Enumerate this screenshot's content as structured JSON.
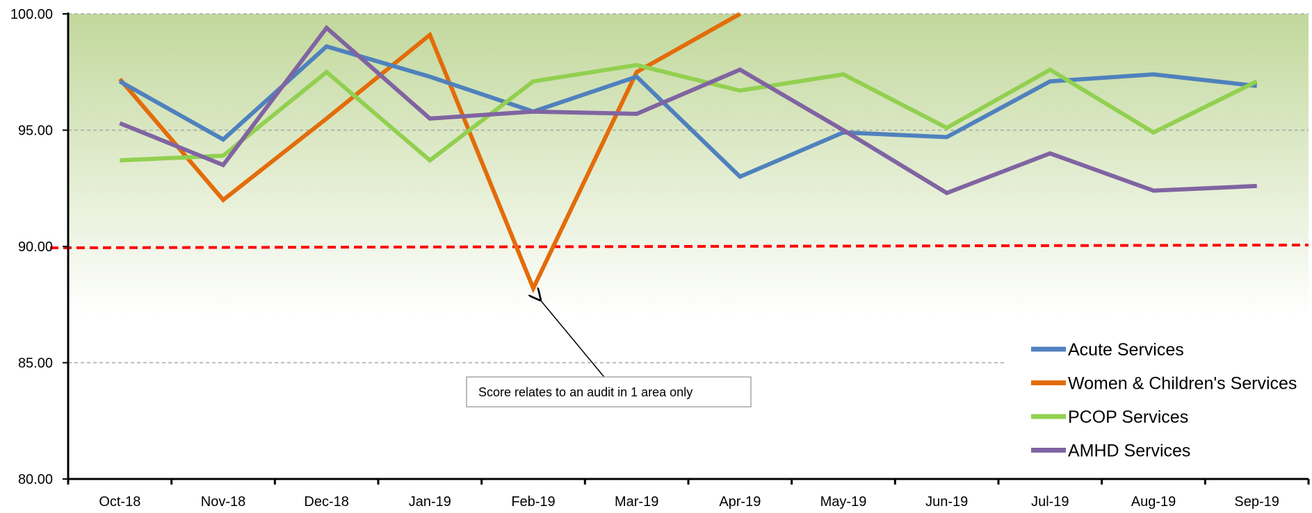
{
  "chart_data": {
    "type": "line",
    "categories": [
      "Oct-18",
      "Nov-18",
      "Dec-18",
      "Jan-19",
      "Feb-19",
      "Mar-19",
      "Apr-19",
      "May-19",
      "Jun-19",
      "Jul-19",
      "Aug-19",
      "Sep-19"
    ],
    "series": [
      {
        "name": "Acute Services",
        "color": "#4f81bd",
        "values": [
          97.1,
          94.6,
          98.6,
          97.3,
          95.8,
          97.3,
          93.0,
          94.9,
          94.7,
          97.1,
          97.4,
          96.9
        ]
      },
      {
        "name": "Women & Children's Services",
        "color": "#e36c0a",
        "values": [
          97.2,
          92.0,
          95.5,
          99.1,
          88.2,
          97.5,
          100.0,
          null,
          null,
          null,
          null,
          null
        ]
      },
      {
        "name": "PCOP Services",
        "color": "#92d050",
        "values": [
          93.7,
          93.9,
          97.5,
          93.7,
          97.1,
          97.8,
          96.7,
          97.4,
          95.1,
          97.6,
          94.9,
          97.1
        ]
      },
      {
        "name": "AMHD Services",
        "color": "#8064a2",
        "values": [
          95.3,
          93.5,
          99.4,
          95.5,
          95.8,
          95.7,
          97.6,
          95.0,
          92.3,
          94.0,
          92.4,
          92.6
        ]
      }
    ],
    "ylim": [
      80,
      100
    ],
    "yticks": [
      "80.00",
      "85.00",
      "90.00",
      "95.00",
      "100.00"
    ],
    "target_line": {
      "value": 90,
      "color": "#ff0000",
      "style": "dashed"
    },
    "gridlines": [
      85,
      95,
      100
    ],
    "background_gradient": {
      "top_color": "#c2d89c",
      "bottom_color": "#ffffff",
      "from_value": 100,
      "to_value": 87
    },
    "legend_position": "bottom-right",
    "annotation": {
      "text": "Score relates to an audit in 1 area only",
      "points_to": "Feb-19"
    },
    "title": "",
    "xlabel": "",
    "ylabel": ""
  }
}
